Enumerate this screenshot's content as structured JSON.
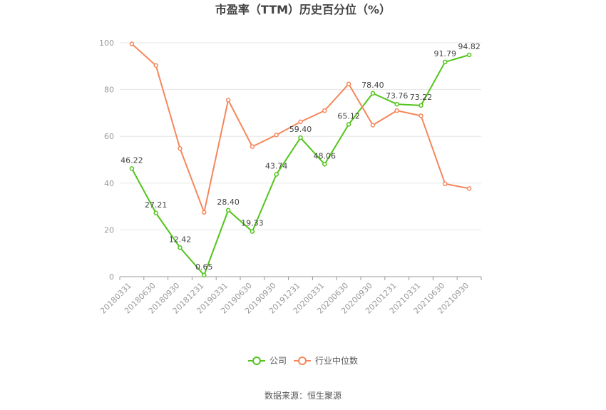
{
  "chart_data": {
    "type": "line",
    "title": "市盈率（TTM）历史百分位（%）",
    "categories": [
      "20180331",
      "20180630",
      "20180930",
      "20181231",
      "20190331",
      "20190630",
      "20190930",
      "20191231",
      "20200331",
      "20200630",
      "20200930",
      "20201231",
      "20210331",
      "20210630",
      "20210930"
    ],
    "ylim": [
      0,
      100
    ],
    "yticks": [
      0,
      20,
      40,
      60,
      80,
      100
    ],
    "grid": true,
    "legend_position": "bottom",
    "series": [
      {
        "name": "公司",
        "color": "#52c41a",
        "values": [
          46.22,
          27.21,
          12.42,
          0.65,
          28.4,
          19.33,
          43.74,
          59.4,
          48.06,
          65.12,
          78.4,
          73.76,
          73.22,
          91.79,
          94.82
        ],
        "labels": [
          "46.22",
          "27.21",
          "12.42",
          "0.65",
          "28.40",
          "19.33",
          "43.74",
          "59.40",
          "48.06",
          "65.12",
          "78.40",
          "73.76",
          "73.22",
          "91.79",
          "94.82"
        ]
      },
      {
        "name": "行业中位数",
        "color": "#f5875c",
        "values": [
          99.5,
          90.3,
          54.8,
          27.5,
          75.5,
          55.6,
          60.6,
          66.2,
          71.0,
          82.4,
          64.8,
          71.0,
          68.8,
          39.7,
          37.7
        ]
      }
    ]
  },
  "footer": {
    "source": "数据来源：恒生聚源"
  }
}
